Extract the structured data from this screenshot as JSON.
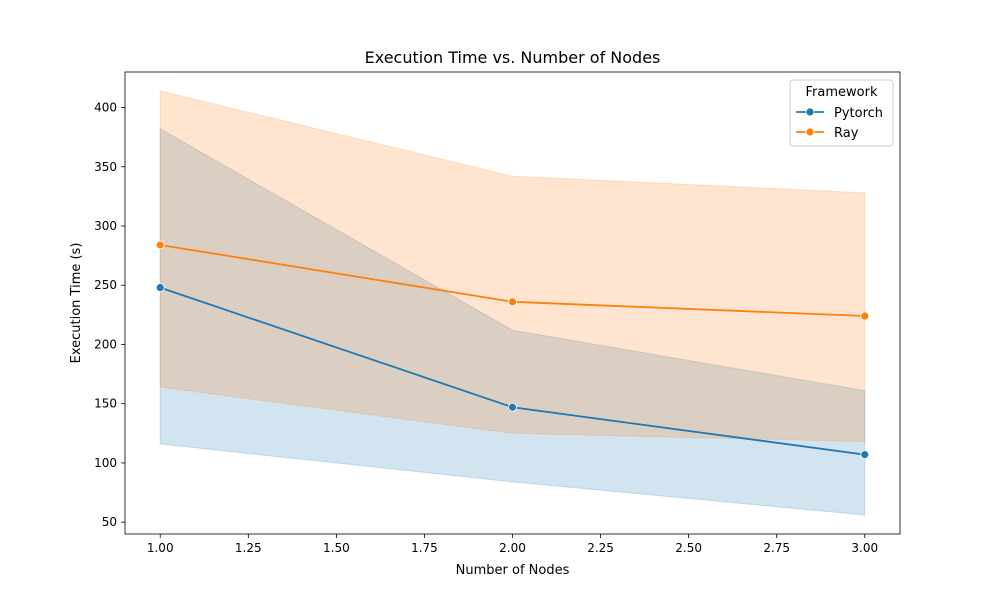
{
  "chart_data": {
    "type": "line",
    "title": "Execution Time vs. Number of Nodes",
    "xlabel": "Number of Nodes",
    "ylabel": "Execution Time (s)",
    "xlim": [
      0.9,
      3.1
    ],
    "ylim": [
      40,
      430
    ],
    "x_ticks": [
      1.0,
      1.25,
      1.5,
      1.75,
      2.0,
      2.25,
      2.5,
      2.75,
      3.0
    ],
    "x_tick_labels": [
      "1.00",
      "1.25",
      "1.50",
      "1.75",
      "2.00",
      "2.25",
      "2.50",
      "2.75",
      "3.00"
    ],
    "y_ticks": [
      50,
      100,
      150,
      200,
      250,
      300,
      350,
      400
    ],
    "y_tick_labels": [
      "50",
      "100",
      "150",
      "200",
      "250",
      "300",
      "350",
      "400"
    ],
    "grid": false,
    "legend": {
      "title": "Framework",
      "placement": "top-right"
    },
    "x": [
      1,
      2,
      3
    ],
    "series": [
      {
        "name": "Pytorch",
        "color": "#1f77b4",
        "values": [
          248,
          147,
          107
        ],
        "ci_lower": [
          116,
          84,
          56
        ],
        "ci_upper": [
          382,
          212,
          161
        ]
      },
      {
        "name": "Ray",
        "color": "#ff7f0e",
        "values": [
          284,
          236,
          224
        ],
        "ci_lower": [
          164,
          125,
          118
        ],
        "ci_upper": [
          414,
          342,
          328
        ]
      }
    ]
  }
}
